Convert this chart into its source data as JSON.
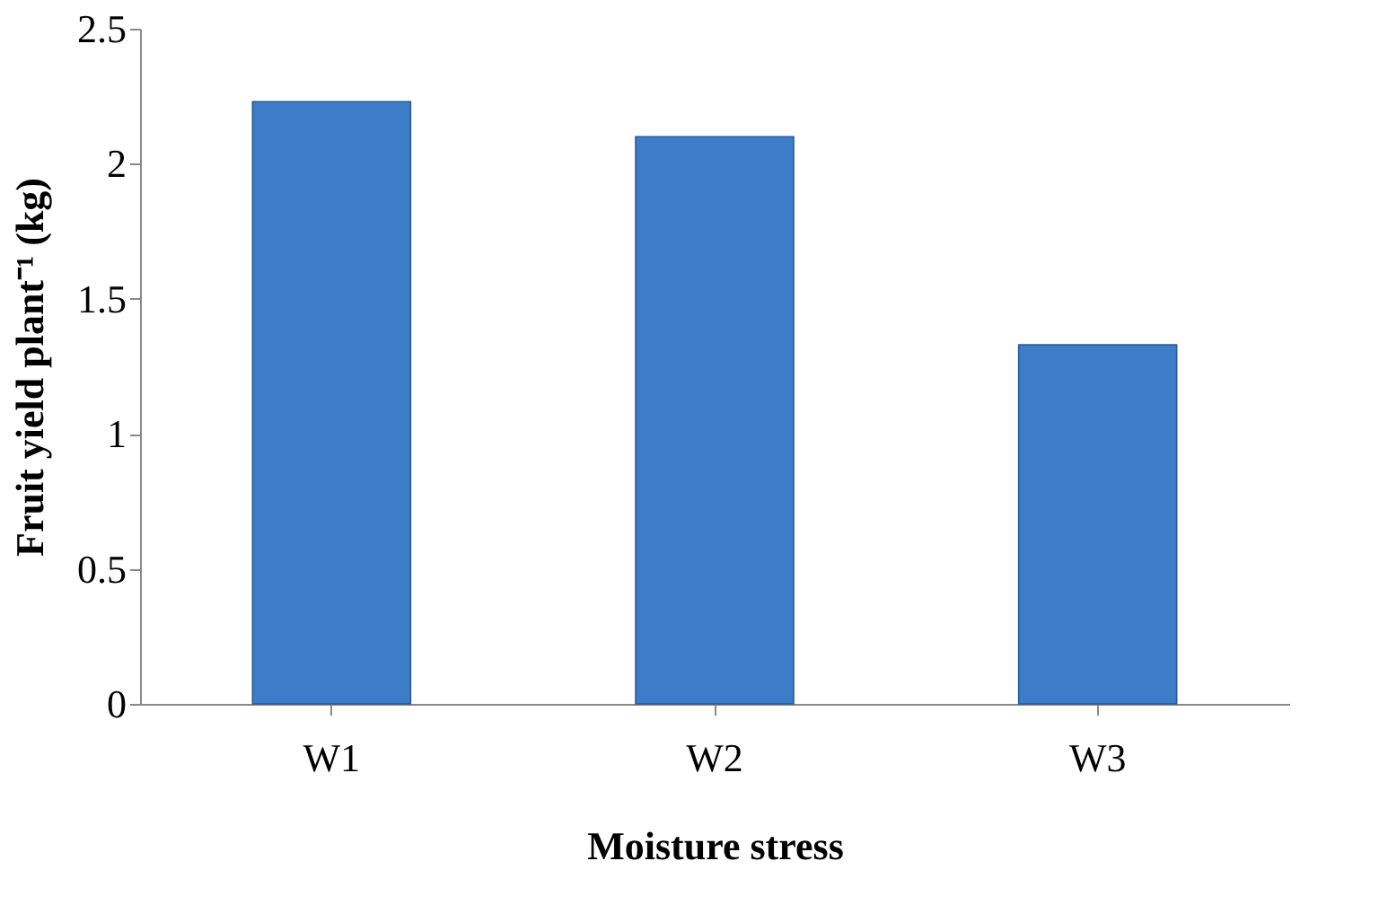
{
  "chart_data": {
    "type": "bar",
    "categories": [
      "W1",
      "W2",
      "W3"
    ],
    "values": [
      2.23,
      2.1,
      1.33
    ],
    "color": "#3d7cc9",
    "xlabel": "Moisture stress",
    "ylabel": "Fruit yield plant⁻¹ (kg)",
    "ylim": [
      0,
      2.5
    ],
    "yticks": [
      0,
      0.5,
      1,
      1.5,
      2,
      2.5
    ],
    "grid": false
  }
}
